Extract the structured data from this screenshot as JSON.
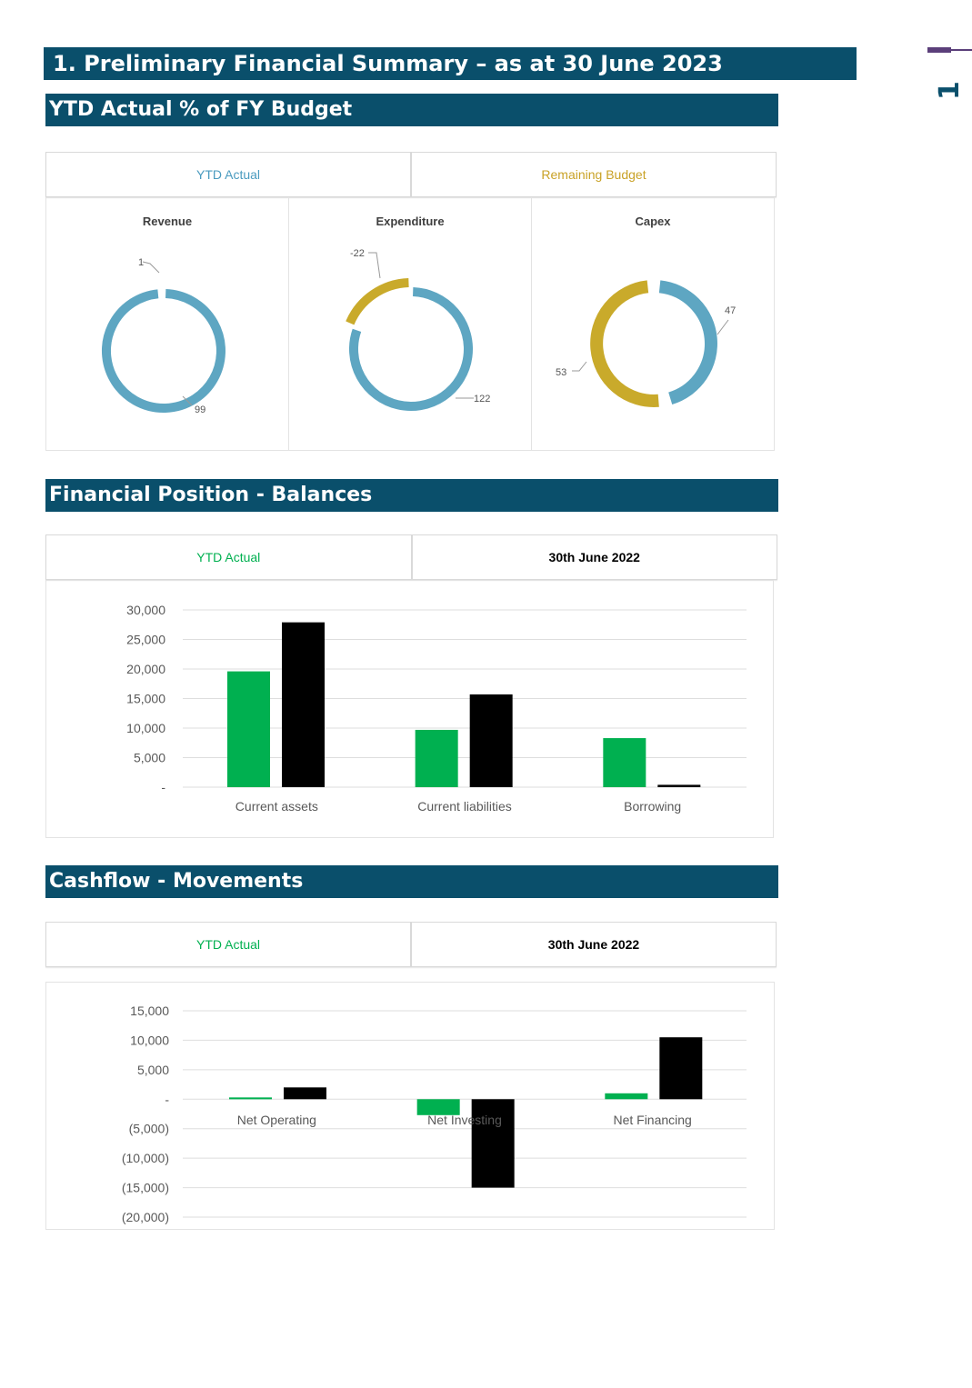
{
  "page": {
    "title": "1.  Preliminary Financial Summary – as at 30 June 2023",
    "page_number": "1",
    "colors": {
      "banner": "#0a4f6b",
      "ytd_green": "#00b050",
      "prior_black": "#000000",
      "donut_blue": "#5ea6c2",
      "donut_gold": "#c9aa2b"
    }
  },
  "section_budget": {
    "title": "YTD Actual % of FY Budget",
    "legend": {
      "ytd_actual": "YTD Actual",
      "remaining_budget": "Remaining Budget"
    },
    "donuts": [
      {
        "title": "Revenue",
        "ytd_actual": 99,
        "remaining": 1,
        "ytd_label": "99",
        "remaining_label": "1"
      },
      {
        "title": "Expenditure",
        "ytd_actual": 122,
        "remaining": -22,
        "ytd_label": "122",
        "remaining_label": "-22"
      },
      {
        "title": "Capex",
        "ytd_actual": 47,
        "remaining": 53,
        "ytd_label": "47",
        "remaining_label": "53"
      }
    ]
  },
  "section_position": {
    "title": "Financial Position - Balances",
    "legend": {
      "ytd_actual": "YTD Actual",
      "prior": "30th June 2022"
    },
    "chart_data": {
      "type": "bar",
      "categories": [
        "Current assets",
        "Current liabilities",
        "Borrowing"
      ],
      "series": [
        {
          "name": "YTD Actual",
          "values": [
            19600,
            9700,
            8300
          ]
        },
        {
          "name": "30th June 2022",
          "values": [
            27900,
            15700,
            400
          ]
        }
      ],
      "ylim": [
        0,
        30000
      ],
      "yticks": [
        0,
        5000,
        10000,
        15000,
        20000,
        25000,
        30000
      ],
      "ytick_labels": [
        "-",
        "5,000",
        "10,000",
        "15,000",
        "20,000",
        "25,000",
        "30,000"
      ],
      "grid": true
    }
  },
  "section_cashflow": {
    "title": "Cashflow - Movements",
    "legend": {
      "ytd_actual": "YTD Actual",
      "prior": "30th June 2022"
    },
    "chart_data": {
      "type": "bar",
      "categories": [
        "Net Operating",
        "Net Investing",
        "Net Financing"
      ],
      "series": [
        {
          "name": "YTD Actual",
          "values": [
            300,
            -2700,
            1000
          ]
        },
        {
          "name": "30th June 2022",
          "values": [
            2000,
            -15000,
            10500
          ]
        }
      ],
      "ylim": [
        -20000,
        15000
      ],
      "yticks": [
        -20000,
        -15000,
        -10000,
        -5000,
        0,
        5000,
        10000,
        15000
      ],
      "ytick_labels": [
        "(20,000)",
        "(15,000)",
        "(10,000)",
        "(5,000)",
        "-",
        "5,000",
        "10,000",
        "15,000"
      ],
      "grid": true
    }
  }
}
